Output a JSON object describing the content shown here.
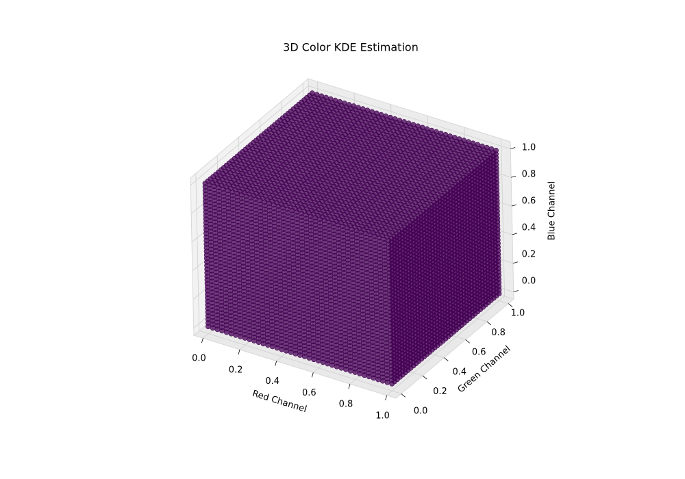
{
  "chart_data": {
    "type": "scatter3d_grid",
    "title": "3D Color KDE Estimation",
    "x_label": "Red Channel",
    "y_label": "Green Channel",
    "z_label": "Blue Channel",
    "color": "#440154",
    "x": [
      0,
      0.025,
      0.05,
      0.075,
      0.1,
      0.125,
      0.15,
      0.175,
      0.2,
      0.225,
      0.25,
      0.275,
      0.3,
      0.325,
      0.35,
      0.375,
      0.4,
      0.425,
      0.45,
      0.475,
      0.5,
      0.525,
      0.55,
      0.575,
      0.6,
      0.625,
      0.65,
      0.675,
      0.7,
      0.725,
      0.75,
      0.775,
      0.8,
      0.825,
      0.85,
      0.875,
      0.9,
      0.925,
      0.95,
      0.975,
      1
    ],
    "y": [
      0,
      0.025,
      0.05,
      0.075,
      0.1,
      0.125,
      0.15,
      0.175,
      0.2,
      0.225,
      0.25,
      0.275,
      0.3,
      0.325,
      0.35,
      0.375,
      0.4,
      0.425,
      0.45,
      0.475,
      0.5,
      0.525,
      0.55,
      0.575,
      0.6,
      0.625,
      0.65,
      0.675,
      0.7,
      0.725,
      0.75,
      0.775,
      0.8,
      0.825,
      0.85,
      0.875,
      0.9,
      0.925,
      0.95,
      0.975,
      1
    ],
    "z": [
      0,
      0.025,
      0.05,
      0.075,
      0.1,
      0.125,
      0.15,
      0.175,
      0.2,
      0.225,
      0.25,
      0.275,
      0.3,
      0.325,
      0.35,
      0.375,
      0.4,
      0.425,
      0.45,
      0.475,
      0.5,
      0.525,
      0.55,
      0.575,
      0.6,
      0.625,
      0.65,
      0.675,
      0.7,
      0.725,
      0.75,
      0.775,
      0.8,
      0.825,
      0.85,
      0.875,
      0.9,
      0.925,
      0.95,
      0.975,
      1
    ],
    "xlim": [
      -0.05,
      1.05
    ],
    "ylim": [
      -0.05,
      1.05
    ],
    "zlim": [
      -0.05,
      1.05
    ],
    "xticks": [
      {
        "value": 0,
        "label": "0.0"
      },
      0.2,
      0.4,
      0.6,
      0.8,
      {
        "value": 1,
        "label": "1.0"
      }
    ],
    "yticks": [
      {
        "value": 0,
        "label": "0.0"
      },
      0.2,
      0.4,
      0.6,
      0.8,
      {
        "value": 1,
        "label": "1.0"
      }
    ],
    "zticks": [
      {
        "value": 0,
        "label": "0.0"
      },
      0.2,
      0.4,
      0.6,
      0.8,
      {
        "value": 1,
        "label": "1.0"
      }
    ],
    "grid": true
  }
}
